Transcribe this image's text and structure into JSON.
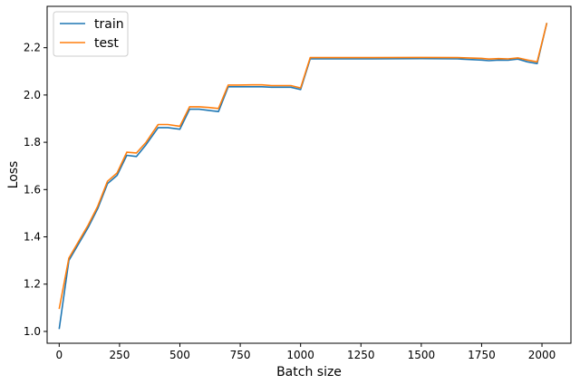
{
  "chart_data": {
    "type": "line",
    "title": "",
    "xlabel": "Batch size",
    "ylabel": "Loss",
    "xlim": [
      -50,
      2120
    ],
    "ylim": [
      0.95,
      2.375
    ],
    "xticks": [
      0,
      250,
      500,
      750,
      1000,
      1250,
      1500,
      1750,
      2000
    ],
    "yticks": [
      1.0,
      1.2,
      1.4,
      1.6,
      1.8,
      2.0,
      2.2
    ],
    "grid": false,
    "legend_position": "top-left",
    "series": [
      {
        "name": "train",
        "color": "#1f77b4",
        "x": [
          0,
          40,
          120,
          160,
          200,
          240,
          280,
          320,
          360,
          410,
          450,
          500,
          540,
          580,
          620,
          660,
          700,
          740,
          800,
          840,
          880,
          920,
          960,
          1000,
          1040,
          1300,
          1500,
          1650,
          1750,
          1780,
          1820,
          1860,
          1900,
          1940,
          1980,
          2020
        ],
        "y": [
          1.01,
          1.3,
          1.44,
          1.52,
          1.625,
          1.66,
          1.745,
          1.74,
          1.79,
          1.862,
          1.862,
          1.855,
          1.94,
          1.94,
          1.935,
          1.93,
          2.035,
          2.035,
          2.035,
          2.035,
          2.033,
          2.033,
          2.033,
          2.023,
          2.153,
          2.153,
          2.154,
          2.153,
          2.148,
          2.145,
          2.148,
          2.147,
          2.152,
          2.14,
          2.133,
          2.305
        ]
      },
      {
        "name": "test",
        "color": "#ff7f0e",
        "x": [
          0,
          40,
          120,
          160,
          200,
          240,
          280,
          320,
          360,
          410,
          450,
          500,
          540,
          580,
          620,
          660,
          700,
          740,
          800,
          840,
          880,
          920,
          960,
          1000,
          1040,
          1300,
          1500,
          1650,
          1750,
          1780,
          1820,
          1860,
          1900,
          1940,
          1980,
          2020
        ],
        "y": [
          1.095,
          1.31,
          1.45,
          1.53,
          1.635,
          1.67,
          1.758,
          1.755,
          1.8,
          1.875,
          1.875,
          1.868,
          1.95,
          1.95,
          1.947,
          1.943,
          2.042,
          2.042,
          2.043,
          2.043,
          2.04,
          2.04,
          2.04,
          2.03,
          2.158,
          2.158,
          2.159,
          2.158,
          2.155,
          2.152,
          2.154,
          2.153,
          2.157,
          2.148,
          2.14,
          2.305
        ]
      }
    ]
  }
}
